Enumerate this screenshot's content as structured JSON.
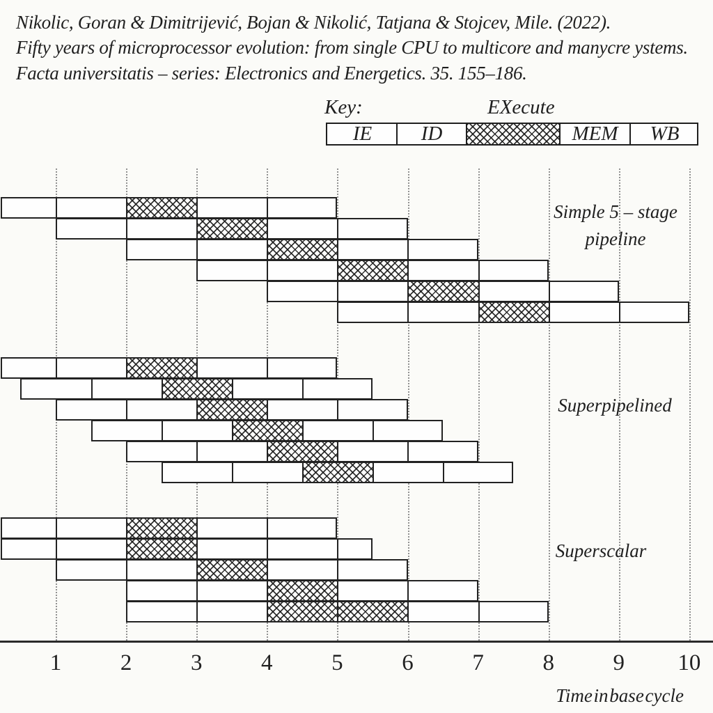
{
  "citation": {
    "lines": [
      "Nikolic, Goran & Dimitrijević, Bojan & Nikolić, Tatjana & Stojcev, Mile. (2022).",
      "Fifty years of microprocessor evolution: from single CPU to multicore and manycre ystems.",
      "Facta universitatis – series: Electronics and Energetics. 35. 155–186."
    ]
  },
  "key": {
    "title": "Key:",
    "execute_label": "EXecute",
    "cells": [
      {
        "label": "IE",
        "hatched": false
      },
      {
        "label": "ID",
        "hatched": false
      },
      {
        "label": "",
        "hatched": true
      },
      {
        "label": "MEM",
        "hatched": false
      },
      {
        "label": "WB",
        "hatched": false
      }
    ]
  },
  "axis": {
    "ticks": [
      "1",
      "2",
      "3",
      "4",
      "5",
      "6",
      "7",
      "8",
      "9",
      "10"
    ],
    "label": "Time in base cycle"
  },
  "diagram": {
    "stage_sequence": [
      "IE",
      "ID",
      "EX",
      "MEM",
      "WB"
    ],
    "sections": [
      {
        "name": "simple-5-stage-pipeline",
        "label_lines": [
          "Simple 5 – stage",
          "pipeline"
        ],
        "rows": [
          {
            "cells": [
              0,
              1,
              2,
              3,
              4,
              5
            ],
            "hatched": [
              2
            ]
          },
          {
            "cells": [
              1,
              2,
              3,
              4,
              5,
              6
            ],
            "hatched": [
              2
            ]
          },
          {
            "cells": [
              2,
              3,
              4,
              5,
              6,
              7
            ],
            "hatched": [
              2
            ]
          },
          {
            "cells": [
              3,
              4,
              5,
              6,
              7,
              8
            ],
            "hatched": [
              2
            ]
          },
          {
            "cells": [
              4,
              5,
              6,
              7,
              8,
              9
            ],
            "hatched": [
              2
            ]
          },
          {
            "cells": [
              5,
              6,
              7,
              8,
              9,
              10
            ],
            "hatched": [
              2
            ]
          }
        ]
      },
      {
        "name": "superpipelined",
        "label_lines": [
          "Superpipelined"
        ],
        "rows": [
          {
            "cells": [
              0,
              1,
              2,
              3,
              4,
              5
            ],
            "hatched": [
              2
            ]
          },
          {
            "cells": [
              0.5,
              1.5,
              2.5,
              3.5,
              4.5,
              5.5
            ],
            "hatched": [
              2
            ]
          },
          {
            "cells": [
              1,
              2,
              3,
              4,
              5,
              6
            ],
            "hatched": [
              2
            ]
          },
          {
            "cells": [
              1.5,
              2.5,
              3.5,
              4.5,
              5.5,
              6.5
            ],
            "hatched": [
              2
            ]
          },
          {
            "cells": [
              2,
              3,
              4,
              5,
              6,
              7
            ],
            "hatched": [
              2
            ]
          },
          {
            "cells": [
              2.5,
              3.5,
              4.5,
              5.5,
              6.5,
              7.5
            ],
            "hatched": [
              2
            ]
          }
        ]
      },
      {
        "name": "superscalar",
        "label_lines": [
          "Superscalar"
        ],
        "rows": [
          {
            "cells": [
              0,
              1,
              2,
              3,
              4,
              5
            ],
            "hatched": [
              2
            ]
          },
          {
            "cells": [
              0,
              1,
              2,
              3,
              4,
              5,
              5.5
            ],
            "hatched": [
              2
            ]
          },
          {
            "cells": [
              1,
              2,
              3,
              4,
              5,
              6
            ],
            "hatched": [
              2
            ]
          },
          {
            "cells": [
              2,
              3,
              4,
              5,
              6,
              7
            ],
            "hatched": [
              2
            ]
          },
          {
            "cells": [
              2,
              3,
              4,
              5,
              6,
              7,
              8
            ],
            "hatched": [
              2,
              3
            ]
          }
        ]
      }
    ]
  },
  "colors": {
    "ink": "#1f1f1f",
    "grid": "#919191",
    "background": "#fbfbf8"
  }
}
